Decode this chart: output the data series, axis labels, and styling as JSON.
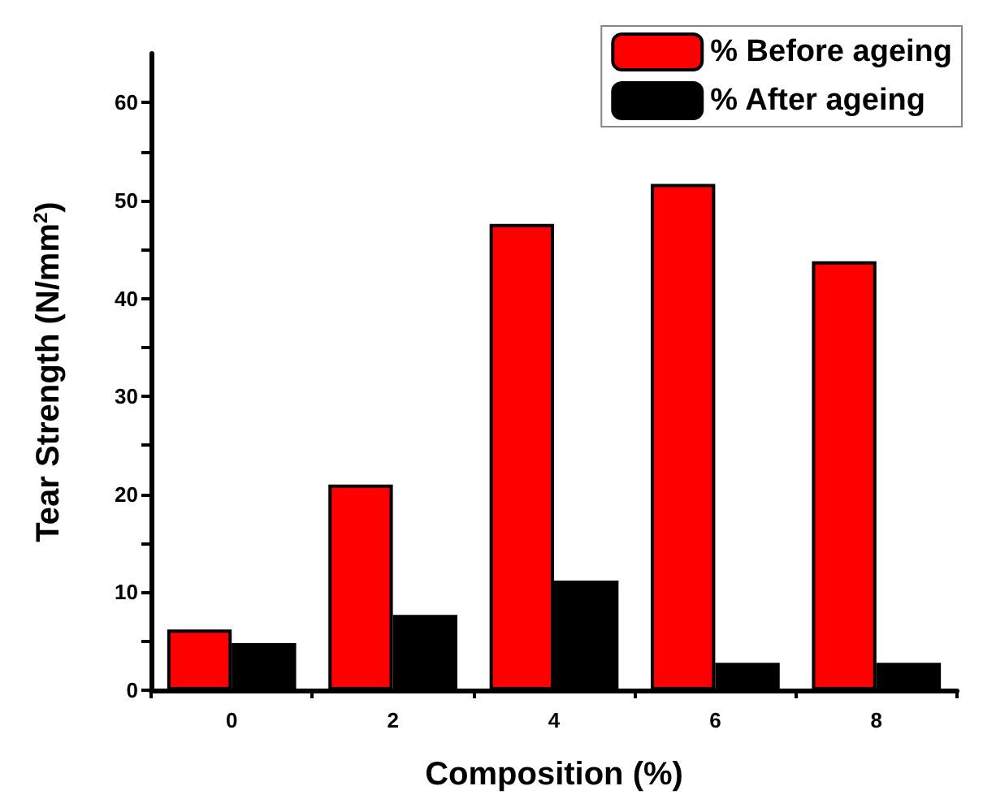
{
  "chart_data": {
    "type": "bar",
    "xlabel": "Composition (%)",
    "ylabel": "Tear Strength (N/mm$^{2}$)",
    "categories": [
      "0",
      "2",
      "4",
      "6",
      "8"
    ],
    "series": [
      {
        "name": "% Before ageing",
        "color": "#ff0000",
        "values": [
          6.2,
          21.0,
          47.6,
          51.7,
          43.8
        ]
      },
      {
        "name": "% After ageing",
        "color": "#000000",
        "values": [
          4.8,
          7.7,
          11.2,
          2.8,
          2.8
        ]
      }
    ],
    "ylim": [
      0,
      65
    ],
    "yticks": [
      0,
      10,
      20,
      30,
      40,
      50,
      60
    ],
    "grid": false,
    "legend": "top right"
  }
}
